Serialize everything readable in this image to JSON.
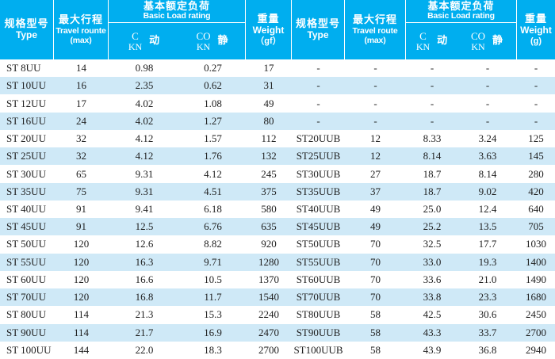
{
  "colors": {
    "header_bg": "#00aeef",
    "stripe_blue": "#cfe9f7",
    "row_white": "#ffffff",
    "header_text": "#ffffff",
    "data_text": "#1e1e1e"
  },
  "left": {
    "header": {
      "type_zh": "规格型号",
      "type_en": "Type",
      "travel_zh": "最大行程",
      "travel_en": "Travel rounte",
      "travel_max": "(max)",
      "load_zh": "基本额定负荷",
      "load_en": "Basic Load rating",
      "c_label": "C",
      "c_unit": "KN",
      "c_mode": "动",
      "co_label": "CO",
      "co_unit": "KN",
      "co_mode": "静",
      "weight_zh": "重量",
      "weight_en": "Weight",
      "weight_unit": "（gf）"
    },
    "rows": [
      {
        "type": "ST 8UU",
        "travel": "14",
        "c": "0.98",
        "co": "0.27",
        "weight": "17"
      },
      {
        "type": "ST 10UU",
        "travel": "16",
        "c": "2.35",
        "co": "0.62",
        "weight": "31"
      },
      {
        "type": "ST 12UU",
        "travel": "17",
        "c": "4.02",
        "co": "1.08",
        "weight": "49"
      },
      {
        "type": "ST 16UU",
        "travel": "24",
        "c": "4.02",
        "co": "1.27",
        "weight": "80"
      },
      {
        "type": "ST 20UU",
        "travel": "32",
        "c": "4.12",
        "co": "1.57",
        "weight": "112"
      },
      {
        "type": "ST 25UU",
        "travel": "32",
        "c": "4.12",
        "co": "1.76",
        "weight": "132"
      },
      {
        "type": "ST 30UU",
        "travel": "65",
        "c": "9.31",
        "co": "4.12",
        "weight": "245"
      },
      {
        "type": "ST 35UU",
        "travel": "75",
        "c": "9.31",
        "co": "4.51",
        "weight": "375"
      },
      {
        "type": "ST 40UU",
        "travel": "91",
        "c": "9.41",
        "co": "6.18",
        "weight": "580"
      },
      {
        "type": "ST 45UU",
        "travel": "91",
        "c": "12.5",
        "co": "6.76",
        "weight": "635"
      },
      {
        "type": "ST 50UU",
        "travel": "120",
        "c": "12.6",
        "co": "8.82",
        "weight": "920"
      },
      {
        "type": "ST 55UU",
        "travel": "120",
        "c": "16.3",
        "co": "9.71",
        "weight": "1280"
      },
      {
        "type": "ST 60UU",
        "travel": "120",
        "c": "16.6",
        "co": "10.5",
        "weight": "1370"
      },
      {
        "type": "ST 70UU",
        "travel": "120",
        "c": "16.8",
        "co": "11.7",
        "weight": "1540"
      },
      {
        "type": "ST 80UU",
        "travel": "114",
        "c": "21.3",
        "co": "15.3",
        "weight": "2240"
      },
      {
        "type": "ST 90UU",
        "travel": "114",
        "c": "21.7",
        "co": "16.9",
        "weight": "2470"
      },
      {
        "type": "ST 100UU",
        "travel": "144",
        "c": "22.0",
        "co": "18.3",
        "weight": "2700"
      }
    ]
  },
  "right": {
    "header": {
      "type_zh": "规格型号",
      "type_en": "Type",
      "travel_zh": "最大行程",
      "travel_en": "Travel route",
      "travel_max": "(max)",
      "load_zh": "基本额定负荷",
      "load_en": "Basic Load rating",
      "c_label": "C",
      "c_unit": "KN",
      "c_mode": "动",
      "co_label": "CO",
      "co_unit": "KN",
      "co_mode": "静",
      "weight_zh": "重量",
      "weight_en": "Weight",
      "weight_unit": "(g)"
    },
    "rows": [
      {
        "type": "-",
        "travel": "-",
        "c": "-",
        "co": "-",
        "weight": "-"
      },
      {
        "type": "-",
        "travel": "-",
        "c": "-",
        "co": "-",
        "weight": "-"
      },
      {
        "type": "-",
        "travel": "-",
        "c": "-",
        "co": "-",
        "weight": "-"
      },
      {
        "type": "-",
        "travel": "-",
        "c": "-",
        "co": "-",
        "weight": "-"
      },
      {
        "type": "ST20UUB",
        "travel": "12",
        "c": "8.33",
        "co": "3.24",
        "weight": "125"
      },
      {
        "type": "ST25UUB",
        "travel": "12",
        "c": "8.14",
        "co": "3.63",
        "weight": "145"
      },
      {
        "type": "ST30UUB",
        "travel": "27",
        "c": "18.7",
        "co": "8.14",
        "weight": "280"
      },
      {
        "type": "ST35UUB",
        "travel": "37",
        "c": "18.7",
        "co": "9.02",
        "weight": "420"
      },
      {
        "type": "ST40UUB",
        "travel": "49",
        "c": "25.0",
        "co": "12.4",
        "weight": "640"
      },
      {
        "type": "ST45UUB",
        "travel": "49",
        "c": "25.2",
        "co": "13.5",
        "weight": "705"
      },
      {
        "type": "ST50UUB",
        "travel": "70",
        "c": "32.5",
        "co": "17.7",
        "weight": "1030"
      },
      {
        "type": "ST55UUB",
        "travel": "70",
        "c": "33.0",
        "co": "19.3",
        "weight": "1400"
      },
      {
        "type": "ST60UUB",
        "travel": "70",
        "c": "33.6",
        "co": "21.0",
        "weight": "1490"
      },
      {
        "type": "ST70UUB",
        "travel": "70",
        "c": "33.8",
        "co": "23.3",
        "weight": "1680"
      },
      {
        "type": "ST80UUB",
        "travel": "58",
        "c": "42.5",
        "co": "30.6",
        "weight": "2450"
      },
      {
        "type": "ST90UUB",
        "travel": "58",
        "c": "43.3",
        "co": "33.7",
        "weight": "2700"
      },
      {
        "type": "ST100UUB",
        "travel": "58",
        "c": "43.9",
        "co": "36.8",
        "weight": "2940"
      }
    ]
  }
}
